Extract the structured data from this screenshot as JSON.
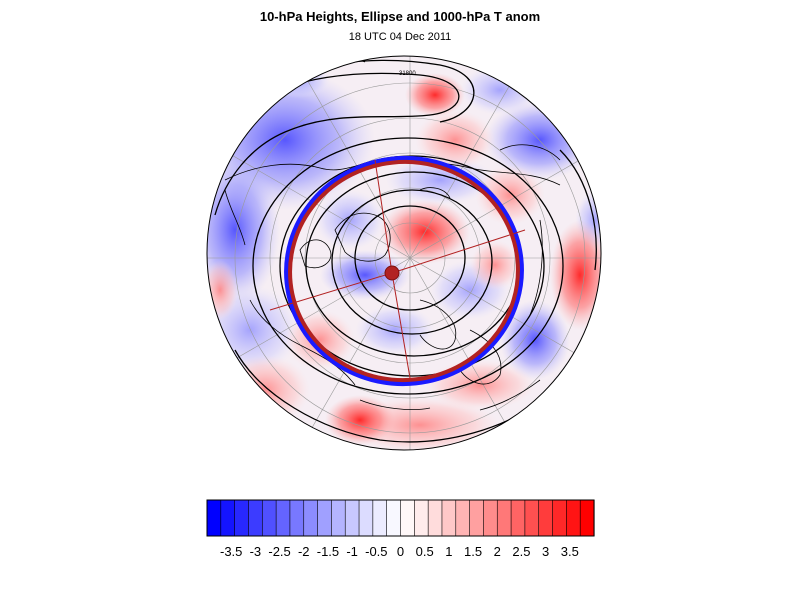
{
  "title": "10-hPa Heights, Ellipse and 1000-hPa T anom",
  "subtitle": "18 UTC 04 Dec 2011",
  "map": {
    "projection": "north-polar-orthographic",
    "contour_label": "31800",
    "colors": {
      "ellipse_outer": "#1a1aff",
      "ellipse_inner": "#b22222",
      "center_marker": "#b22222",
      "contour_line": "#000000",
      "coastline": "#000000",
      "graticule": "#9a9a9a"
    }
  },
  "colorbar": {
    "tick_labels": [
      "-3.5",
      "-3",
      "-2.5",
      "-2",
      "-1.5",
      "-1",
      "-0.5",
      "0",
      "0.5",
      "1",
      "1.5",
      "2",
      "2.5",
      "3",
      "3.5"
    ],
    "colors": [
      "#0000ff",
      "#1414ff",
      "#2828ff",
      "#3c3cff",
      "#5050ff",
      "#6464ff",
      "#7878ff",
      "#8c8cff",
      "#a0a0ff",
      "#b4b4ff",
      "#c8c8ff",
      "#dcdcff",
      "#ececff",
      "#f8f8ff",
      "#fff8f8",
      "#ffecec",
      "#ffdcdc",
      "#ffc8c8",
      "#ffb4b4",
      "#ffa0a0",
      "#ff8c8c",
      "#ff7878",
      "#ff6464",
      "#ff5050",
      "#ff3c3c",
      "#ff2828",
      "#ff1414",
      "#ff0000"
    ]
  }
}
